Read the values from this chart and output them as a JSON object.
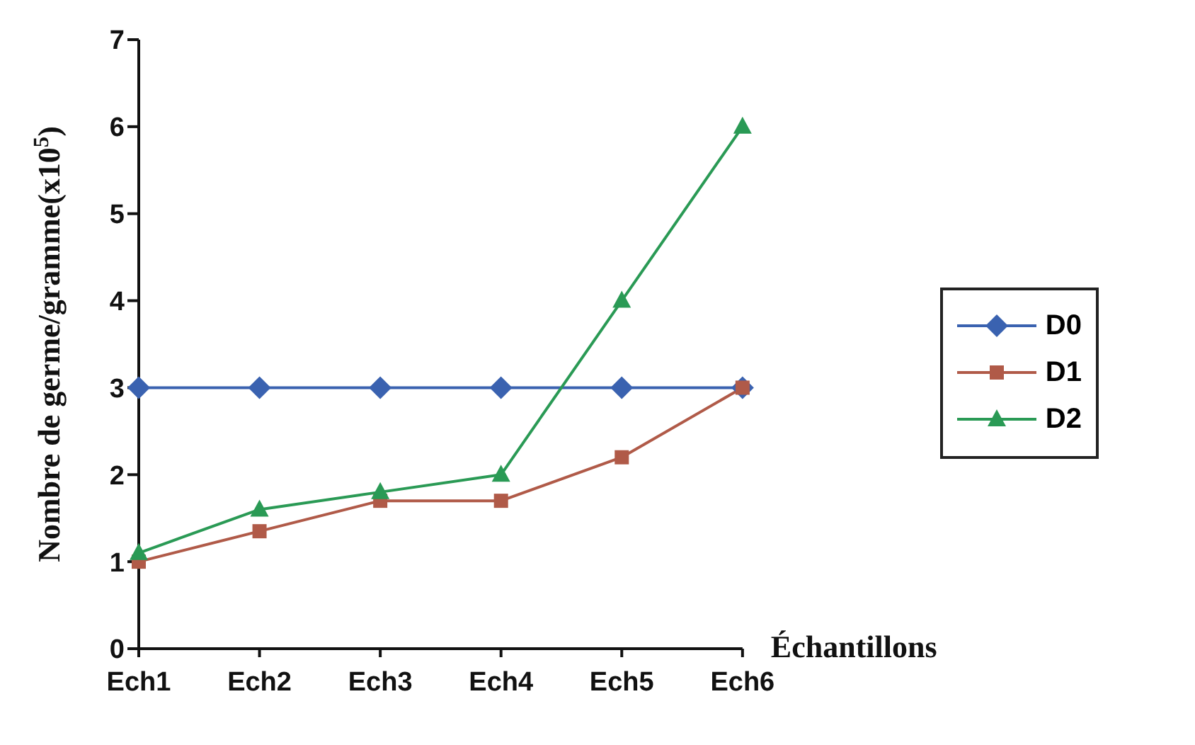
{
  "chart_data": {
    "type": "line",
    "xlabel": "Échantillons",
    "ylabel": "Nombre de germe/gramme(x10$^{5}$)",
    "categories": [
      "Ech1",
      "Ech2",
      "Ech3",
      "Ech4",
      "Ech5",
      "Ech6"
    ],
    "series": [
      {
        "name": "D0",
        "color": "#3a62b0",
        "marker": "diamond",
        "values": [
          3,
          3,
          3,
          3,
          3,
          3
        ]
      },
      {
        "name": "D1",
        "color": "#b05a48",
        "marker": "square",
        "values": [
          1.0,
          1.35,
          1.7,
          1.7,
          2.2,
          3.0
        ]
      },
      {
        "name": "D2",
        "color": "#2a9a55",
        "marker": "triangle",
        "values": [
          1.1,
          1.6,
          1.8,
          2.0,
          4.0,
          6.0
        ]
      }
    ],
    "ylim": [
      0,
      7
    ],
    "yticks": [
      0,
      1,
      2,
      3,
      4,
      5,
      6,
      7
    ],
    "grid": false,
    "legend": "right",
    "line_style": "solid"
  }
}
